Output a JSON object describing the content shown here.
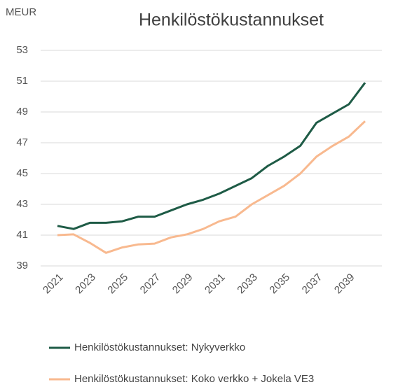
{
  "chart_data": {
    "type": "line",
    "title": "Henkilöstökustannukset",
    "y_label": "MEUR",
    "x": [
      2021,
      2022,
      2023,
      2024,
      2025,
      2026,
      2027,
      2028,
      2029,
      2030,
      2031,
      2032,
      2033,
      2034,
      2035,
      2036,
      2037,
      2038,
      2039,
      2040
    ],
    "xlim": [
      2021,
      2040
    ],
    "xticks": [
      2021,
      2023,
      2025,
      2027,
      2029,
      2031,
      2033,
      2035,
      2037,
      2039
    ],
    "ylim": [
      39,
      53
    ],
    "yticks": [
      39,
      41,
      43,
      45,
      47,
      49,
      51,
      53
    ],
    "grid": true,
    "legend": "bottom",
    "series": [
      {
        "name": "Henkilöstökustannukset: Nykyverkko",
        "color": "#1e5b46",
        "values": [
          41.6,
          41.4,
          41.8,
          41.8,
          41.9,
          42.2,
          42.2,
          42.6,
          43.0,
          43.3,
          43.7,
          44.2,
          44.7,
          45.5,
          46.1,
          46.8,
          48.3,
          48.9,
          49.5,
          50.9
        ]
      },
      {
        "name": "Henkilöstökustannukset: Koko verkko + Jokela VE3",
        "color": "#f8b98f",
        "values": [
          41.0,
          41.05,
          40.5,
          39.85,
          40.2,
          40.4,
          40.45,
          40.85,
          41.05,
          41.4,
          41.9,
          42.2,
          43.0,
          43.6,
          44.2,
          45.0,
          46.1,
          46.8,
          47.4,
          48.4
        ]
      }
    ]
  }
}
